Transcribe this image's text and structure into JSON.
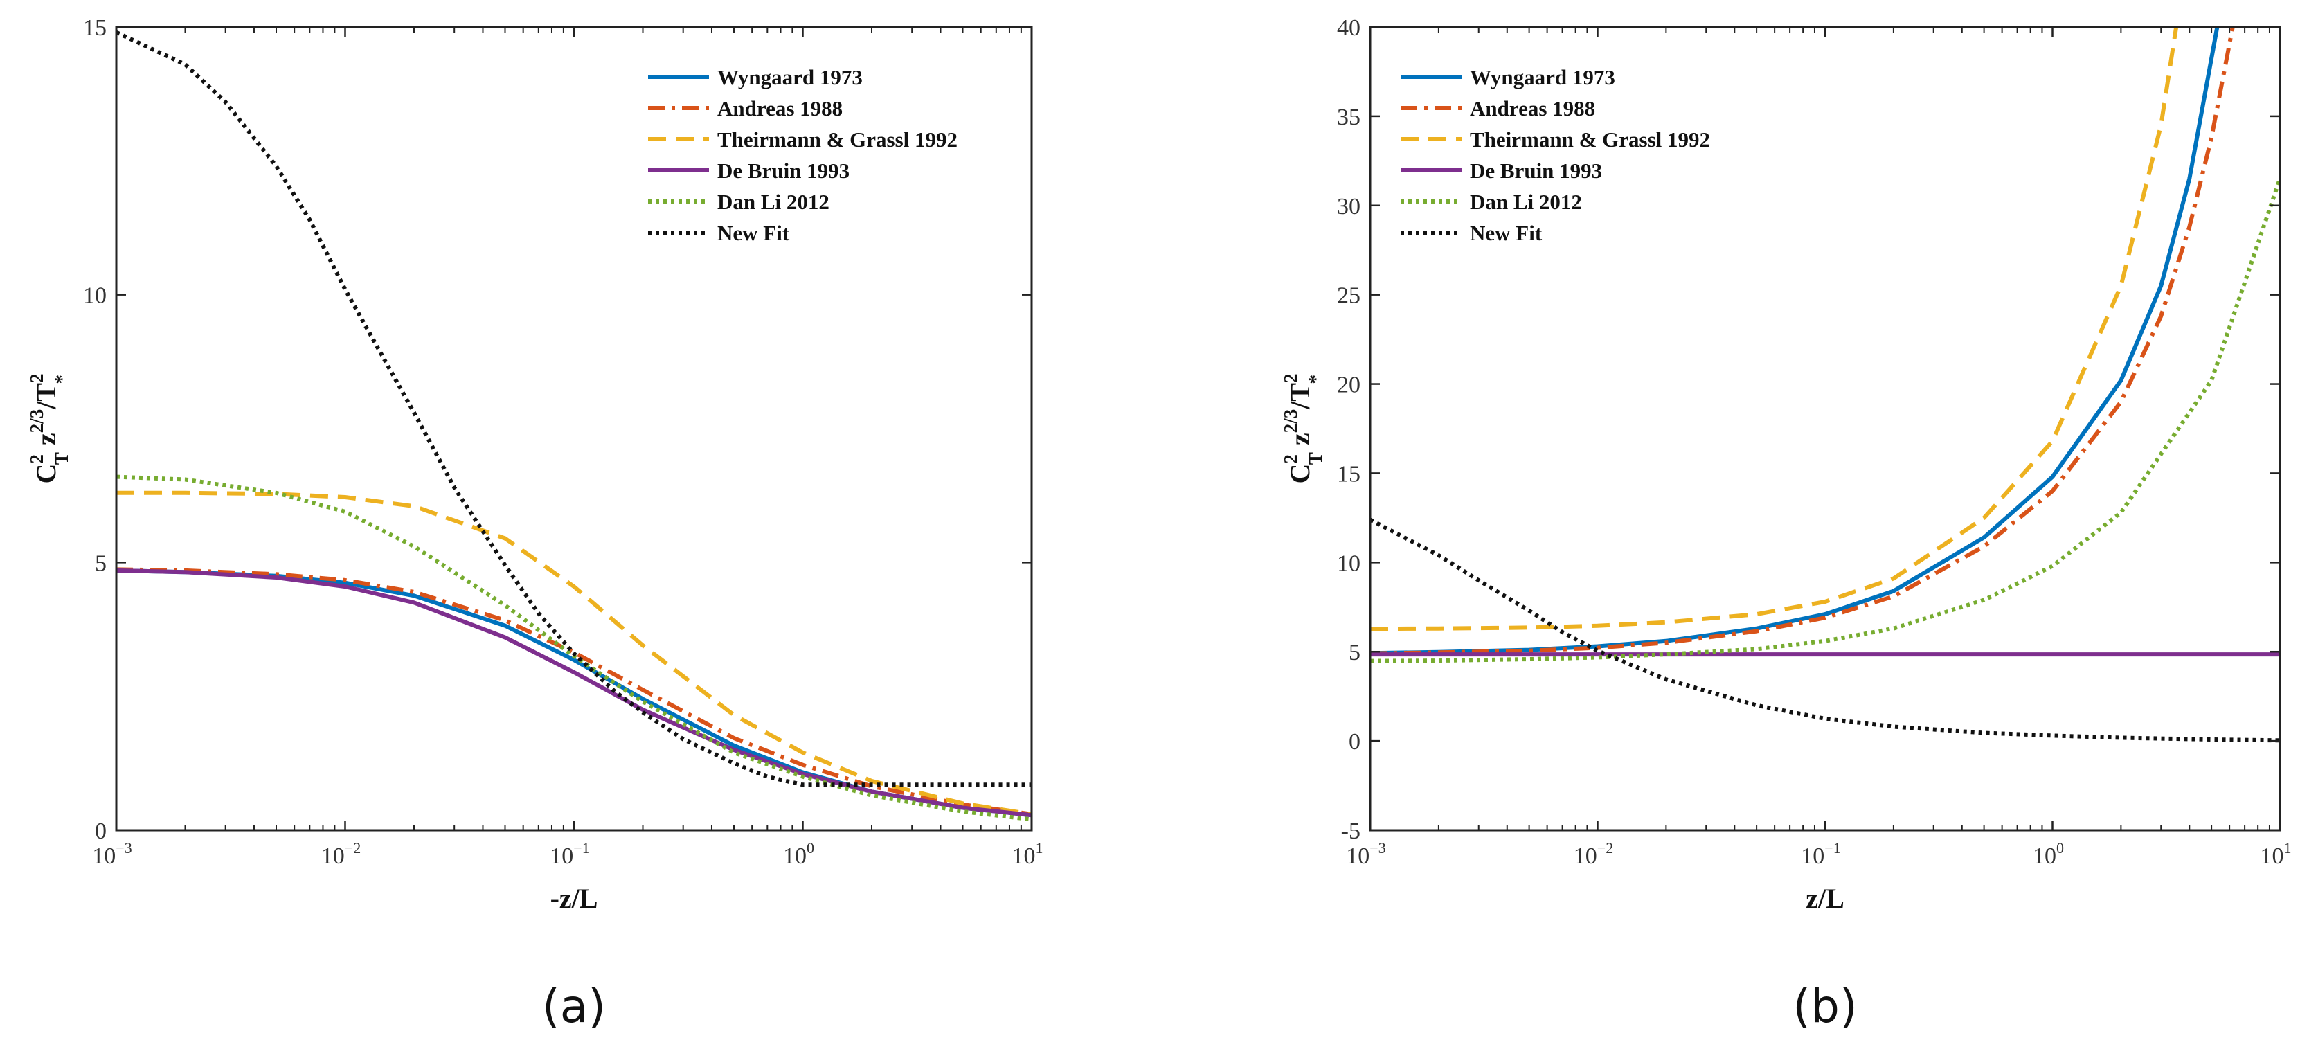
{
  "chart_data": [
    {
      "id": "a",
      "type": "line",
      "panel_label": "(a)",
      "title": "",
      "xlabel": "-z/L",
      "ylabel_parts": {
        "base": "C",
        "base_sup": "2",
        "base_sub": "T",
        "z": "z",
        "z_sup": "2/3",
        "slash": "/T",
        "t_sup": "2",
        "t_sub": "*"
      },
      "xscale": "log",
      "xlim": [
        0.001,
        10
      ],
      "ylim": [
        0,
        15
      ],
      "x_ticks": [
        {
          "value": 0.001,
          "base": "10",
          "exp": "−3"
        },
        {
          "value": 0.01,
          "base": "10",
          "exp": "−2"
        },
        {
          "value": 0.1,
          "base": "10",
          "exp": "−1"
        },
        {
          "value": 1,
          "base": "10",
          "exp": "0"
        },
        {
          "value": 10,
          "base": "10",
          "exp": "1"
        }
      ],
      "y_ticks": [
        {
          "value": 0,
          "label": "0"
        },
        {
          "value": 5,
          "label": "5"
        },
        {
          "value": 10,
          "label": "10"
        },
        {
          "value": 15,
          "label": "15"
        }
      ],
      "legend_position": "top-right",
      "series": [
        {
          "name": "Wyngaard 1973",
          "color": "#0072BD",
          "dash": "solid",
          "x": [
            0.001,
            0.002,
            0.005,
            0.01,
            0.02,
            0.05,
            0.1,
            0.2,
            0.5,
            1,
            2,
            5,
            10
          ],
          "y": [
            4.85,
            4.82,
            4.75,
            4.62,
            4.38,
            3.82,
            3.18,
            2.45,
            1.58,
            1.08,
            0.72,
            0.42,
            0.28
          ]
        },
        {
          "name": "Andreas 1988",
          "color": "#D95319",
          "dash": "dashdot",
          "x": [
            0.001,
            0.002,
            0.005,
            0.01,
            0.02,
            0.05,
            0.1,
            0.2,
            0.5,
            1,
            2,
            5,
            10
          ],
          "y": [
            4.87,
            4.85,
            4.78,
            4.67,
            4.45,
            3.92,
            3.32,
            2.62,
            1.72,
            1.22,
            0.82,
            0.48,
            0.3
          ]
        },
        {
          "name": "Theirmann & Grassl 1992",
          "color": "#EDB120",
          "dash": "dashed",
          "x": [
            0.001,
            0.002,
            0.005,
            0.01,
            0.02,
            0.05,
            0.1,
            0.2,
            0.5,
            1,
            2,
            5,
            10
          ],
          "y": [
            6.3,
            6.3,
            6.28,
            6.22,
            6.05,
            5.45,
            4.55,
            3.45,
            2.15,
            1.45,
            0.92,
            0.5,
            0.3
          ]
        },
        {
          "name": "De Bruin 1993",
          "color": "#7E2F8E",
          "dash": "solid",
          "x": [
            0.001,
            0.002,
            0.005,
            0.01,
            0.02,
            0.05,
            0.1,
            0.2,
            0.5,
            1,
            2,
            5,
            10
          ],
          "y": [
            4.85,
            4.82,
            4.72,
            4.55,
            4.25,
            3.6,
            2.95,
            2.25,
            1.5,
            1.05,
            0.72,
            0.42,
            0.28
          ]
        },
        {
          "name": "Dan Li 2012",
          "color": "#77AC30",
          "dash": "dotted",
          "x": [
            0.001,
            0.002,
            0.005,
            0.01,
            0.02,
            0.05,
            0.1,
            0.2,
            0.5,
            1,
            2,
            5,
            10
          ],
          "y": [
            6.6,
            6.55,
            6.3,
            5.95,
            5.3,
            4.2,
            3.25,
            2.4,
            1.45,
            1.0,
            0.65,
            0.35,
            0.2
          ]
        },
        {
          "name": "New Fit",
          "color": "#111111",
          "dash": "dotted",
          "x": [
            0.001,
            0.002,
            0.003,
            0.005,
            0.007,
            0.01,
            0.02,
            0.03,
            0.05,
            0.07,
            0.1,
            0.15,
            0.2,
            0.3,
            0.5,
            0.7,
            1,
            2,
            5,
            10
          ],
          "y": [
            14.9,
            14.3,
            13.6,
            12.4,
            11.4,
            10.1,
            7.8,
            6.4,
            4.95,
            4.05,
            3.3,
            2.6,
            2.2,
            1.7,
            1.25,
            1.0,
            0.85,
            0.85,
            0.85,
            0.85
          ]
        }
      ]
    },
    {
      "id": "b",
      "type": "line",
      "panel_label": "(b)",
      "title": "",
      "xlabel": "z/L",
      "ylabel_parts": {
        "base": "C",
        "base_sup": "2",
        "base_sub": "T",
        "z": "z",
        "z_sup": "2/3",
        "slash": "/T",
        "t_sup": "2",
        "t_sub": "*"
      },
      "xscale": "log",
      "xlim": [
        0.001,
        10
      ],
      "ylim": [
        -5,
        40
      ],
      "x_ticks": [
        {
          "value": 0.001,
          "base": "10",
          "exp": "−3"
        },
        {
          "value": 0.01,
          "base": "10",
          "exp": "−2"
        },
        {
          "value": 0.1,
          "base": "10",
          "exp": "−1"
        },
        {
          "value": 1,
          "base": "10",
          "exp": "0"
        },
        {
          "value": 10,
          "base": "10",
          "exp": "1"
        }
      ],
      "y_ticks": [
        {
          "value": -5,
          "label": "-5"
        },
        {
          "value": 0,
          "label": "0"
        },
        {
          "value": 5,
          "label": "5"
        },
        {
          "value": 10,
          "label": "10"
        },
        {
          "value": 15,
          "label": "15"
        },
        {
          "value": 20,
          "label": "20"
        },
        {
          "value": 25,
          "label": "25"
        },
        {
          "value": 30,
          "label": "30"
        },
        {
          "value": 35,
          "label": "35"
        },
        {
          "value": 40,
          "label": "40"
        }
      ],
      "legend_position": "top-left",
      "series": [
        {
          "name": "Wyngaard 1973",
          "color": "#0072BD",
          "dash": "solid",
          "x": [
            0.001,
            0.002,
            0.005,
            0.01,
            0.02,
            0.05,
            0.1,
            0.2,
            0.5,
            1,
            2,
            3,
            4,
            5.3
          ],
          "y": [
            4.92,
            4.98,
            5.1,
            5.3,
            5.6,
            6.3,
            7.1,
            8.4,
            11.4,
            14.8,
            20.2,
            25.5,
            31.5,
            40
          ]
        },
        {
          "name": "Andreas 1988",
          "color": "#D95319",
          "dash": "dashdot",
          "x": [
            0.001,
            0.002,
            0.005,
            0.01,
            0.02,
            0.05,
            0.1,
            0.2,
            0.5,
            1,
            2,
            3,
            4,
            5,
            6.2
          ],
          "y": [
            4.9,
            4.96,
            5.06,
            5.22,
            5.5,
            6.15,
            6.9,
            8.1,
            10.9,
            14.0,
            19.0,
            23.8,
            28.8,
            33.8,
            40
          ]
        },
        {
          "name": "Theirmann & Grassl 1992",
          "color": "#EDB120",
          "dash": "dashed",
          "x": [
            0.001,
            0.002,
            0.005,
            0.01,
            0.02,
            0.05,
            0.1,
            0.2,
            0.5,
            1,
            2,
            3,
            3.5
          ],
          "y": [
            6.28,
            6.3,
            6.35,
            6.45,
            6.65,
            7.1,
            7.8,
            9.1,
            12.5,
            16.8,
            25.5,
            34.5,
            40
          ]
        },
        {
          "name": "De Bruin 1993",
          "color": "#7E2F8E",
          "dash": "solid",
          "x": [
            0.001,
            0.01,
            0.1,
            1,
            10
          ],
          "y": [
            4.85,
            4.85,
            4.85,
            4.85,
            4.85
          ]
        },
        {
          "name": "Dan Li 2012",
          "color": "#77AC30",
          "dash": "dotted",
          "x": [
            0.001,
            0.002,
            0.005,
            0.01,
            0.02,
            0.05,
            0.1,
            0.2,
            0.5,
            1,
            2,
            5,
            10
          ],
          "y": [
            4.48,
            4.5,
            4.58,
            4.68,
            4.85,
            5.15,
            5.6,
            6.3,
            7.9,
            9.8,
            12.8,
            20.2,
            31.5
          ]
        },
        {
          "name": "New Fit",
          "color": "#111111",
          "dash": "dotted",
          "x": [
            0.001,
            0.002,
            0.003,
            0.005,
            0.007,
            0.01,
            0.02,
            0.05,
            0.1,
            0.2,
            0.5,
            1,
            2,
            5,
            10
          ],
          "y": [
            12.4,
            10.4,
            9.0,
            7.3,
            6.1,
            5.05,
            3.45,
            2.0,
            1.25,
            0.8,
            0.45,
            0.3,
            0.18,
            0.08,
            0.03
          ]
        }
      ]
    }
  ]
}
